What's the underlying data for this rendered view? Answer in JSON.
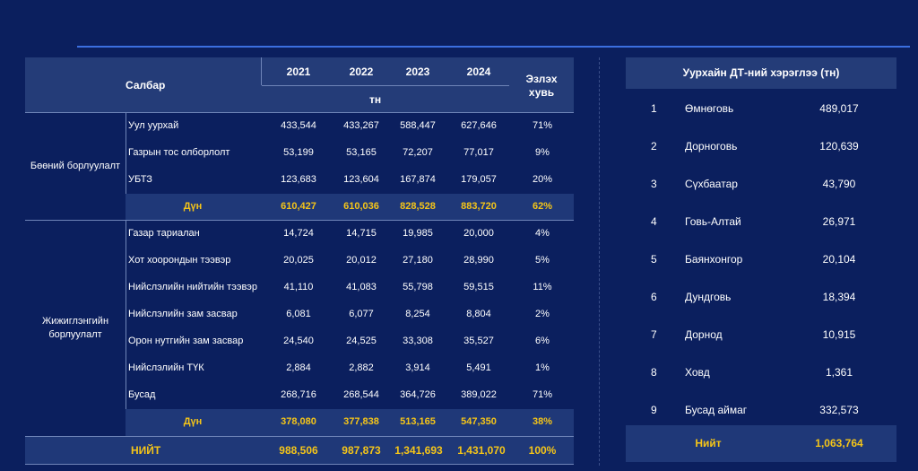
{
  "left_table": {
    "header": {
      "sector": "Салбар",
      "years": [
        "2021",
        "2022",
        "2023",
        "2024"
      ],
      "unit": "тн",
      "share": "Эзлэх хувь"
    },
    "groups": [
      {
        "label": "Бөөний борлуулалт",
        "rows": [
          {
            "name": "Уул уурхай",
            "values": [
              "433,544",
              "433,267",
              "588,447",
              "627,646"
            ],
            "share": "71%"
          },
          {
            "name": "Газрын тос олборлолт",
            "values": [
              "53,199",
              "53,165",
              "72,207",
              "77,017"
            ],
            "share": "9%"
          },
          {
            "name": "УБТЗ",
            "values": [
              "123,683",
              "123,604",
              "167,874",
              "179,057"
            ],
            "share": "20%"
          }
        ],
        "subtotal": {
          "name": "Дүн",
          "values": [
            "610,427",
            "610,036",
            "828,528",
            "883,720"
          ],
          "share": "62%"
        }
      },
      {
        "label": "Жижиглэнгийн борлуулалт",
        "rows": [
          {
            "name": "Газар тариалан",
            "values": [
              "14,724",
              "14,715",
              "19,985",
              "20,000"
            ],
            "share": "4%"
          },
          {
            "name": "Хот хоорондын тээвэр",
            "values": [
              "20,025",
              "20,012",
              "27,180",
              "28,990"
            ],
            "share": "5%"
          },
          {
            "name": "Нийслэлийн нийтийн тээвэр",
            "values": [
              "41,110",
              "41,083",
              "55,798",
              "59,515"
            ],
            "share": "11%"
          },
          {
            "name": "Нийслэлийн зам засвар",
            "values": [
              "6,081",
              "6,077",
              "8,254",
              "8,804"
            ],
            "share": "2%"
          },
          {
            "name": "Орон нутгийн зам засвар",
            "values": [
              "24,540",
              "24,525",
              "33,308",
              "35,527"
            ],
            "share": "6%"
          },
          {
            "name": "Нийслэлийн ТҮК",
            "values": [
              "2,884",
              "2,882",
              "3,914",
              "5,491"
            ],
            "share": "1%"
          },
          {
            "name": "Бусад",
            "values": [
              "268,716",
              "268,544",
              "364,726",
              "389,022"
            ],
            "share": "71%"
          }
        ],
        "subtotal": {
          "name": "Дүн",
          "values": [
            "378,080",
            "377,838",
            "513,165",
            "547,350"
          ],
          "share": "38%"
        }
      }
    ],
    "total": {
      "name": "НИЙТ",
      "values": [
        "988,506",
        "987,873",
        "1,341,693",
        "1,431,070"
      ],
      "share": "100%"
    }
  },
  "right_table": {
    "title": "Уурхайн ДТ-ний хэрэглээ (тн)",
    "rows": [
      {
        "n": "1",
        "name": "Өмнөговь",
        "value": "489,017"
      },
      {
        "n": "2",
        "name": "Дорноговь",
        "value": "120,639"
      },
      {
        "n": "3",
        "name": "Сүхбаатар",
        "value": "43,790"
      },
      {
        "n": "4",
        "name": "Говь-Алтай",
        "value": "26,971"
      },
      {
        "n": "5",
        "name": "Баянхонгор",
        "value": "20,104"
      },
      {
        "n": "6",
        "name": "Дундговь",
        "value": "18,394"
      },
      {
        "n": "7",
        "name": "Дорнод",
        "value": "10,915"
      },
      {
        "n": "8",
        "name": "Ховд",
        "value": "1,361"
      },
      {
        "n": "9",
        "name": "Бусад аймаг",
        "value": "332,573"
      }
    ],
    "total": {
      "name": "Нийт",
      "value": "1,063,764"
    }
  },
  "colors": {
    "background": "#0b1f5e",
    "header": "#243c78",
    "highlight": "#f5c518",
    "accent_line": "#3b6fe0"
  }
}
